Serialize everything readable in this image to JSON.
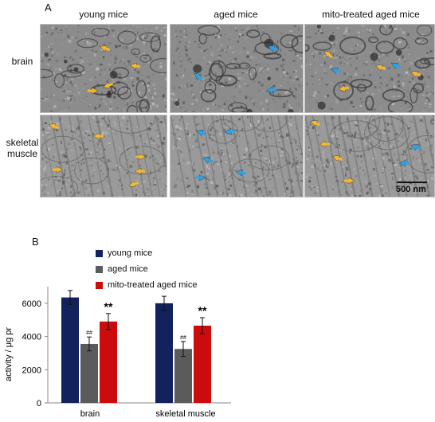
{
  "figure": {
    "panel_a": {
      "letter": "A",
      "columns": [
        "young mice",
        "aged mice",
        "mito-treated aged mice"
      ],
      "rows": [
        {
          "label_line1": "brain",
          "label_line2": ""
        },
        {
          "label_line1": "skeletal",
          "label_line2": "muscle"
        }
      ],
      "scale_bar_label": "500 nm",
      "arrow_colors": {
        "normal": "#f5b82e",
        "abnormal": "#2aa3e8"
      }
    },
    "panel_b": {
      "letter": "B"
    }
  },
  "chart_data": {
    "type": "bar",
    "categories": [
      "brain",
      "skeletal muscle"
    ],
    "series": [
      {
        "name": "young mice",
        "color": "#13215c",
        "values": [
          6350,
          6000
        ],
        "errors": [
          420,
          420
        ],
        "annotation": [
          "",
          ""
        ]
      },
      {
        "name": "aged mice",
        "color": "#5b5b5b",
        "values": [
          3550,
          3250
        ],
        "errors": [
          420,
          450
        ],
        "annotation": [
          "##",
          "##"
        ]
      },
      {
        "name": "mito-treated aged mice",
        "color": "#cc0c0c",
        "values": [
          4900,
          4650
        ],
        "errors": [
          480,
          480
        ],
        "annotation": [
          "**",
          "**"
        ]
      }
    ],
    "ylabel": "activity / μg pr",
    "xlabel": "",
    "ylim": [
      0,
      7000
    ],
    "yticks": [
      "0",
      "2000",
      "4000",
      "6000"
    ],
    "legend_position": "top",
    "grid": false
  }
}
